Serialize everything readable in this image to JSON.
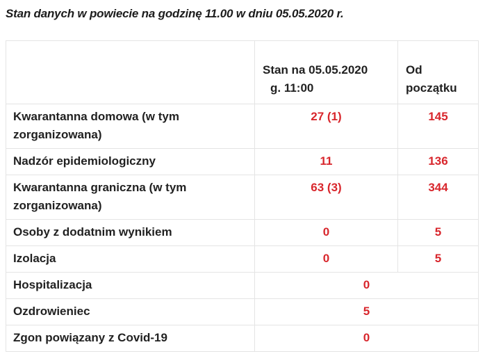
{
  "page_title": "Stan danych w powiecie na godzinę 11.00 w dniu 05.05.2020 r.",
  "table": {
    "header": {
      "label_col": "",
      "current_col_line1": "Stan na 05.05.2020",
      "current_col_line2": "g. 11:00",
      "total_col_line1": "Od",
      "total_col_line2": "początku"
    },
    "rows": [
      {
        "label": "Kwarantanna domowa (w tym zorganizowana)",
        "current": "27 (1)",
        "total": "145"
      },
      {
        "label": "Nadzór epidemiologiczny",
        "current": "11",
        "total": "136"
      },
      {
        "label": "Kwarantanna graniczna (w tym zorganizowana)",
        "current": "63 (3)",
        "total": "344"
      },
      {
        "label": "Osoby z dodatnim wynikiem",
        "current": "0",
        "total": "5"
      },
      {
        "label": "Izolacja",
        "current": "0",
        "total": "5"
      },
      {
        "label": "Hospitalizacja",
        "value": "0"
      },
      {
        "label": "Ozdrowieniec",
        "value": "5"
      },
      {
        "label": "Zgon powiązany z Covid-19",
        "value": "0"
      }
    ]
  },
  "colors": {
    "value_red": "#d8262c",
    "label_text": "#212121",
    "border": "#e4e4e4",
    "background": "#ffffff"
  }
}
